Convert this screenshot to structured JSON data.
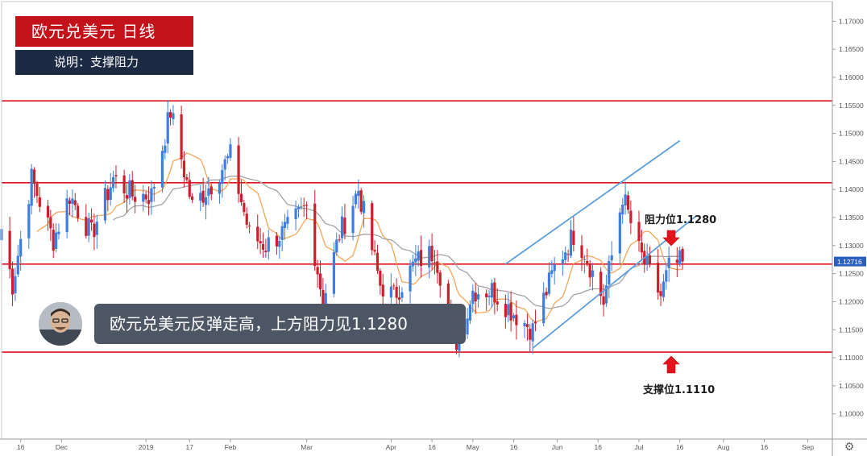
{
  "header": {
    "title": "欧元兑美元  日线",
    "subtitle": "说明：支撑阻力"
  },
  "caption": "欧元兑美元反弹走高，上方阻力见1.1280",
  "annotations": {
    "resistance": "阻力位1.1280",
    "support": "支撑位1.1110"
  },
  "icons": {
    "settings": "gear-icon",
    "avatar": "presenter-photo",
    "resistance_arrow": "arrow-down-icon",
    "support_arrow": "arrow-up-icon"
  },
  "colors": {
    "up": "#3d7ee0",
    "down": "#cc1f2b",
    "levels": "#e3121c",
    "channel": "#5c9fdc",
    "ma_fast": "#f3a65a",
    "ma_slow": "#a3a3a3",
    "price_badge": "#2a5fc1"
  },
  "chart_data": {
    "type": "candlestick",
    "title": "欧元兑美元  日线",
    "y_ticks": [
      "1.17000",
      "1.16500",
      "1.16000",
      "1.15500",
      "1.15000",
      "1.14500",
      "1.14000",
      "1.13500",
      "1.13000",
      "1.12500",
      "1.12000",
      "1.11500",
      "1.11000",
      "1.10500",
      "1.10000"
    ],
    "ylim": [
      1.0955,
      1.1735
    ],
    "x_ticks": [
      {
        "label": "16",
        "date": "2018-11-16"
      },
      {
        "label": "Dec",
        "date": "2018-12-01"
      },
      {
        "label": "2019",
        "date": "2019-01-01"
      },
      {
        "label": "17",
        "date": "2019-01-17"
      },
      {
        "label": "Feb",
        "date": "2019-02-01"
      },
      {
        "label": "Mar",
        "date": "2019-03-01"
      },
      {
        "label": "Apr",
        "date": "2019-04-01"
      },
      {
        "label": "16",
        "date": "2019-04-16"
      },
      {
        "label": "May",
        "date": "2019-05-01"
      },
      {
        "label": "16",
        "date": "2019-05-16"
      },
      {
        "label": "Jun",
        "date": "2019-06-01"
      },
      {
        "label": "16",
        "date": "2019-06-16"
      },
      {
        "label": "Jul",
        "date": "2019-07-01"
      },
      {
        "label": "16",
        "date": "2019-07-16"
      },
      {
        "label": "Aug",
        "date": "2019-08-01"
      },
      {
        "label": "16",
        "date": "2019-08-16"
      },
      {
        "label": "Sep",
        "date": "2019-09-01"
      }
    ],
    "xlim": [
      "2018-11-09",
      "2019-09-10"
    ],
    "horizontal_levels": [
      1.1558,
      1.1412,
      1.1267,
      1.111
    ],
    "current_price": "1.12716",
    "channel": {
      "lower": [
        [
          "2019-05-23",
          1.1117
        ],
        [
          "2019-07-22",
          1.1353
        ]
      ],
      "upper": [
        [
          "2019-05-13",
          1.1267
        ],
        [
          "2019-07-16",
          1.1487
        ]
      ]
    },
    "anchors": [
      [
        "2018-11-09",
        1.133
      ],
      [
        "2018-11-13",
        1.123
      ],
      [
        "2018-11-20",
        1.142
      ],
      [
        "2018-11-28",
        1.131
      ],
      [
        "2018-12-04",
        1.139
      ],
      [
        "2018-12-12",
        1.132
      ],
      [
        "2018-12-20",
        1.142
      ],
      [
        "2018-12-27",
        1.139
      ],
      [
        "2019-01-03",
        1.139
      ],
      [
        "2019-01-10",
        1.154
      ],
      [
        "2019-01-18",
        1.137
      ],
      [
        "2019-01-25",
        1.141
      ],
      [
        "2019-02-01",
        1.146
      ],
      [
        "2019-02-08",
        1.132
      ],
      [
        "2019-02-14",
        1.13
      ],
      [
        "2019-02-22",
        1.133
      ],
      [
        "2019-03-01",
        1.137
      ],
      [
        "2019-03-07",
        1.12
      ],
      [
        "2019-03-13",
        1.132
      ],
      [
        "2019-03-20",
        1.14
      ],
      [
        "2019-03-28",
        1.123
      ],
      [
        "2019-04-02",
        1.121
      ],
      [
        "2019-04-10",
        1.127
      ],
      [
        "2019-04-17",
        1.129
      ],
      [
        "2019-04-25",
        1.113
      ],
      [
        "2019-05-01",
        1.122
      ],
      [
        "2019-05-08",
        1.122
      ],
      [
        "2019-05-16",
        1.118
      ],
      [
        "2019-05-23",
        1.115
      ],
      [
        "2019-05-31",
        1.126
      ],
      [
        "2019-06-07",
        1.132
      ],
      [
        "2019-06-11",
        1.129
      ],
      [
        "2019-06-18",
        1.12
      ],
      [
        "2019-06-25",
        1.139
      ],
      [
        "2019-07-01",
        1.129
      ],
      [
        "2019-07-05",
        1.125
      ],
      [
        "2019-07-09",
        1.121
      ],
      [
        "2019-07-12",
        1.126
      ],
      [
        "2019-07-17",
        1.1272
      ]
    ]
  }
}
